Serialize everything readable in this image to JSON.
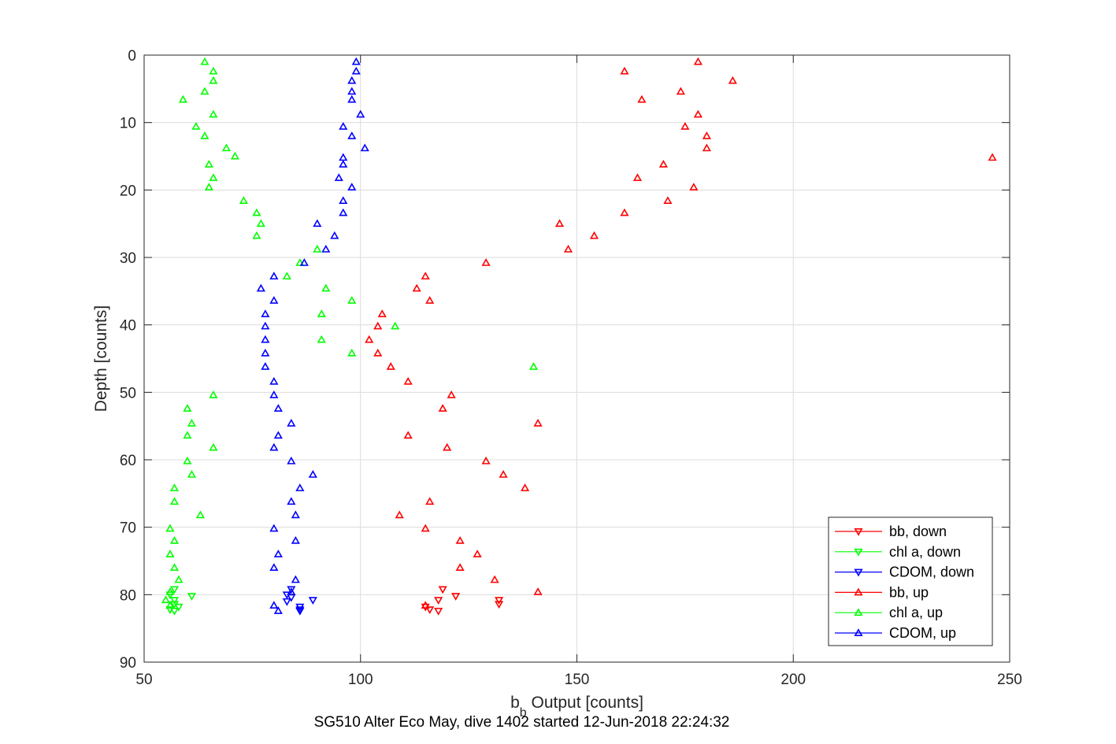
{
  "chart_data": {
    "type": "scatter",
    "title": "",
    "xlabel_main": "b",
    "xlabel_sub": "b",
    "xlabel_rest": " Output [counts]",
    "ylabel": "Depth [counts]",
    "caption": "SG510 Alter Eco May, dive 1402 started 12-Jun-2018 22:24:32",
    "xlim": [
      50,
      250
    ],
    "ylim": [
      0,
      90
    ],
    "y_reversed": true,
    "grid": true,
    "legend_position": "bottom-right",
    "x_ticks": [
      "50",
      "100",
      "150",
      "200",
      "250"
    ],
    "y_ticks": [
      "0",
      "10",
      "20",
      "30",
      "40",
      "50",
      "60",
      "70",
      "80",
      "90"
    ],
    "series": [
      {
        "name": "bb, down",
        "color": "#ff0000",
        "marker": "triangle-down",
        "points": [
          [
            119,
            79.2
          ],
          [
            122,
            80.2
          ],
          [
            118,
            80.8
          ],
          [
            132,
            80.8
          ],
          [
            132,
            81.4
          ],
          [
            115,
            81.8
          ],
          [
            116,
            82.2
          ],
          [
            118,
            82.4
          ]
        ]
      },
      {
        "name": "chl a, down",
        "color": "#00ff00",
        "marker": "triangle-down",
        "points": [
          [
            57,
            79.2
          ],
          [
            56,
            80.0
          ],
          [
            61,
            80.2
          ],
          [
            57,
            80.8
          ],
          [
            57,
            81.4
          ],
          [
            58,
            81.8
          ],
          [
            56,
            82.2
          ],
          [
            57,
            82.4
          ]
        ]
      },
      {
        "name": "CDOM, down",
        "color": "#0000ff",
        "marker": "triangle-down",
        "points": [
          [
            84,
            79.2
          ],
          [
            83,
            80.0
          ],
          [
            84,
            80.4
          ],
          [
            89,
            80.8
          ],
          [
            83,
            81.0
          ],
          [
            86,
            81.8
          ],
          [
            86,
            82.2
          ],
          [
            86,
            82.4
          ]
        ]
      },
      {
        "name": "bb, up",
        "color": "#ff0000",
        "marker": "triangle-up",
        "points": [
          [
            178,
            1.0
          ],
          [
            161,
            2.4
          ],
          [
            186,
            3.8
          ],
          [
            174,
            5.4
          ],
          [
            165,
            6.6
          ],
          [
            178,
            8.8
          ],
          [
            175,
            10.6
          ],
          [
            180,
            12.0
          ],
          [
            180,
            13.8
          ],
          [
            246,
            15.2
          ],
          [
            170,
            16.2
          ],
          [
            164,
            18.2
          ],
          [
            177,
            19.6
          ],
          [
            171,
            21.6
          ],
          [
            161,
            23.4
          ],
          [
            146,
            25.0
          ],
          [
            154,
            26.8
          ],
          [
            148,
            28.8
          ],
          [
            129,
            30.8
          ],
          [
            115,
            32.8
          ],
          [
            113,
            34.6
          ],
          [
            116,
            36.4
          ],
          [
            105,
            38.4
          ],
          [
            104,
            40.2
          ],
          [
            102,
            42.2
          ],
          [
            104,
            44.2
          ],
          [
            107,
            46.2
          ],
          [
            111,
            48.4
          ],
          [
            121,
            50.4
          ],
          [
            119,
            52.4
          ],
          [
            141,
            54.6
          ],
          [
            111,
            56.4
          ],
          [
            120,
            58.2
          ],
          [
            129,
            60.2
          ],
          [
            133,
            62.2
          ],
          [
            138,
            64.2
          ],
          [
            116,
            66.2
          ],
          [
            109,
            68.2
          ],
          [
            115,
            70.2
          ],
          [
            123,
            72.0
          ],
          [
            127,
            74.0
          ],
          [
            123,
            76.0
          ],
          [
            131,
            77.8
          ],
          [
            141,
            79.6
          ],
          [
            115,
            81.6
          ]
        ]
      },
      {
        "name": "chl a, up",
        "color": "#00ff00",
        "marker": "triangle-up",
        "points": [
          [
            64,
            1.0
          ],
          [
            66,
            2.4
          ],
          [
            66,
            3.8
          ],
          [
            64,
            5.4
          ],
          [
            59,
            6.6
          ],
          [
            66,
            8.8
          ],
          [
            62,
            10.6
          ],
          [
            64,
            12.0
          ],
          [
            69,
            13.8
          ],
          [
            71,
            15.0
          ],
          [
            65,
            16.2
          ],
          [
            66,
            18.2
          ],
          [
            65,
            19.6
          ],
          [
            73,
            21.6
          ],
          [
            76,
            23.4
          ],
          [
            77,
            25.0
          ],
          [
            76,
            26.8
          ],
          [
            90,
            28.8
          ],
          [
            86,
            30.8
          ],
          [
            83,
            32.8
          ],
          [
            92,
            34.6
          ],
          [
            98,
            36.4
          ],
          [
            91,
            38.4
          ],
          [
            108,
            40.2
          ],
          [
            91,
            42.2
          ],
          [
            98,
            44.2
          ],
          [
            140,
            46.2
          ],
          [
            66,
            50.4
          ],
          [
            60,
            52.4
          ],
          [
            61,
            54.6
          ],
          [
            60,
            56.4
          ],
          [
            66,
            58.2
          ],
          [
            60,
            60.2
          ],
          [
            61,
            62.2
          ],
          [
            57,
            64.2
          ],
          [
            57,
            66.2
          ],
          [
            63,
            68.2
          ],
          [
            56,
            70.2
          ],
          [
            57,
            72.0
          ],
          [
            56,
            74.0
          ],
          [
            57,
            76.0
          ],
          [
            58,
            77.8
          ],
          [
            56,
            79.6
          ],
          [
            55,
            80.8
          ],
          [
            56,
            81.6
          ]
        ]
      },
      {
        "name": "CDOM, up",
        "color": "#0000ff",
        "marker": "triangle-up",
        "points": [
          [
            99,
            1.0
          ],
          [
            99,
            2.4
          ],
          [
            98,
            3.8
          ],
          [
            98,
            5.4
          ],
          [
            98,
            6.6
          ],
          [
            100,
            8.8
          ],
          [
            96,
            10.6
          ],
          [
            98,
            12.0
          ],
          [
            101,
            13.8
          ],
          [
            96,
            15.2
          ],
          [
            96,
            16.2
          ],
          [
            95,
            18.2
          ],
          [
            98,
            19.6
          ],
          [
            96,
            21.6
          ],
          [
            96,
            23.4
          ],
          [
            90,
            25.0
          ],
          [
            94,
            26.8
          ],
          [
            92,
            28.8
          ],
          [
            87,
            30.8
          ],
          [
            80,
            32.8
          ],
          [
            77,
            34.6
          ],
          [
            80,
            36.4
          ],
          [
            78,
            38.4
          ],
          [
            78,
            40.2
          ],
          [
            78,
            42.2
          ],
          [
            78,
            44.2
          ],
          [
            78,
            46.2
          ],
          [
            80,
            48.4
          ],
          [
            80,
            50.4
          ],
          [
            81,
            52.4
          ],
          [
            84,
            54.6
          ],
          [
            81,
            56.4
          ],
          [
            80,
            58.2
          ],
          [
            84,
            60.2
          ],
          [
            89,
            62.2
          ],
          [
            86,
            64.2
          ],
          [
            84,
            66.2
          ],
          [
            85,
            68.2
          ],
          [
            80,
            70.2
          ],
          [
            85,
            72.0
          ],
          [
            81,
            74.0
          ],
          [
            80,
            76.0
          ],
          [
            85,
            77.8
          ],
          [
            84,
            79.6
          ],
          [
            80,
            81.6
          ],
          [
            81,
            82.4
          ]
        ]
      }
    ]
  }
}
